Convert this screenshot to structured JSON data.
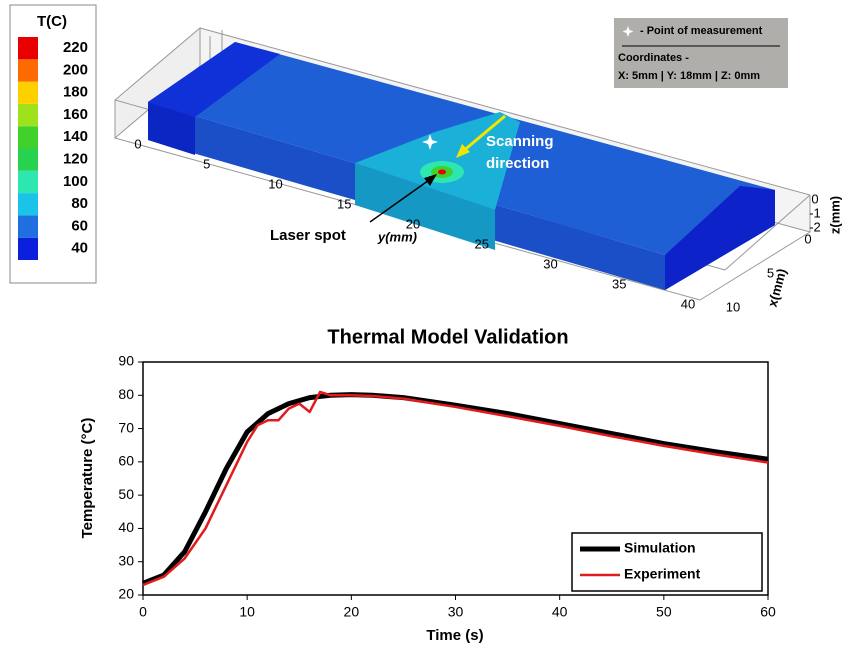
{
  "thermal_map": {
    "colorbar": {
      "title": "T(C)",
      "levels": [
        40,
        60,
        80,
        100,
        120,
        140,
        160,
        180,
        200,
        220
      ],
      "colors": [
        "#0b1fdc",
        "#1f6fe0",
        "#19c4e8",
        "#2ee6b0",
        "#28d24e",
        "#40d22a",
        "#9ee21c",
        "#ffd000",
        "#ff6a00",
        "#e80000"
      ]
    },
    "y_axis": {
      "label": "y(mm)",
      "ticks": [
        0,
        5,
        10,
        15,
        20,
        25,
        30,
        35,
        40
      ]
    },
    "x_axis": {
      "label": "x(mm)",
      "ticks": [
        0,
        5,
        10
      ]
    },
    "z_axis": {
      "label": "z(mm)",
      "ticks": [
        0,
        -1,
        -2
      ]
    },
    "annotations": {
      "scanning": [
        "Scanning",
        "direction"
      ],
      "laser_spot": "Laser spot"
    },
    "measurement_box": {
      "legend": "- Point of measurement",
      "coordinates_title": "Coordinates -",
      "coordinates": "X: 5mm | Y: 18mm | Z: 0mm"
    }
  },
  "chart_data": {
    "type": "line",
    "title": "Thermal Model Validation",
    "x_label": "Time (s)",
    "y_label": "Temperature (°C)",
    "xlim": [
      0,
      60
    ],
    "ylim": [
      20,
      90
    ],
    "xticks": [
      0,
      10,
      20,
      30,
      40,
      50,
      60
    ],
    "yticks": [
      20,
      30,
      40,
      50,
      60,
      70,
      80,
      90
    ],
    "legend": "lower right",
    "series": [
      {
        "name": "Simulation",
        "color": "#000000",
        "x": [
          0,
          2,
          4,
          6,
          8,
          10,
          12,
          14,
          16,
          18,
          20,
          22,
          25,
          30,
          35,
          40,
          45,
          50,
          55,
          60
        ],
        "values": [
          23.5,
          26,
          33,
          45,
          58,
          69,
          74.5,
          77.5,
          79.3,
          80,
          80.2,
          80,
          79.3,
          77,
          74.5,
          71.5,
          68.5,
          65.5,
          63,
          60.8
        ]
      },
      {
        "name": "Experiment",
        "color": "#e31a1c",
        "x": [
          0,
          2,
          4,
          6,
          8,
          10,
          11,
          12,
          13,
          14,
          15,
          16,
          17,
          17.5,
          18,
          20,
          22,
          25,
          30,
          35,
          40,
          45,
          50,
          55,
          60
        ],
        "values": [
          23,
          25.5,
          31,
          40,
          53,
          66,
          71,
          72.5,
          72.5,
          76,
          77.5,
          75,
          81,
          80.5,
          80,
          80,
          79.8,
          79,
          76.5,
          73.7,
          70.8,
          67.7,
          64.8,
          62.2,
          59.8
        ]
      }
    ]
  }
}
